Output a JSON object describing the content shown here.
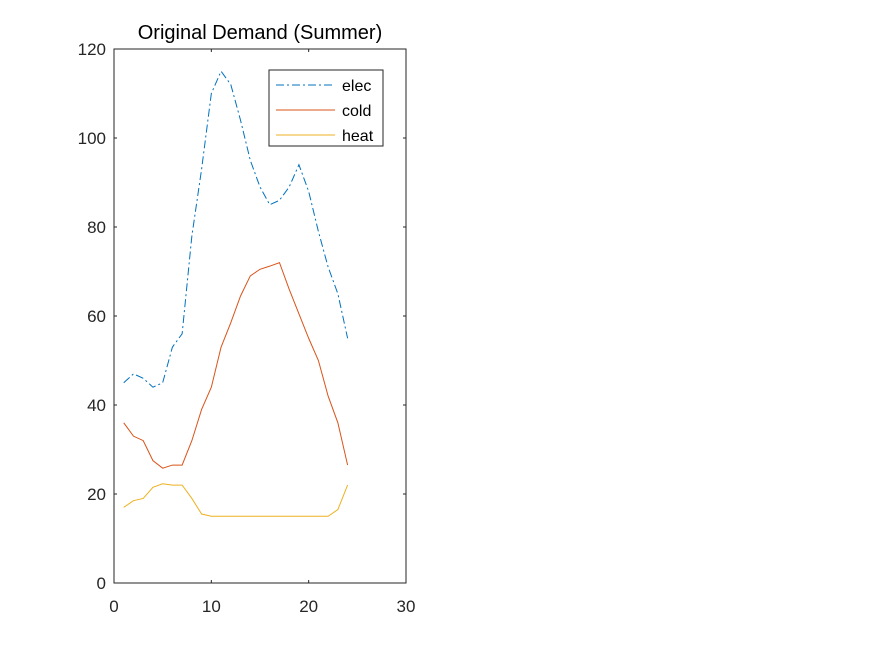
{
  "chart_data": {
    "type": "line",
    "title": "Original Demand (Summer)",
    "xlabel": "",
    "ylabel": "",
    "xlim": [
      0,
      30
    ],
    "ylim": [
      0,
      120
    ],
    "xticks": [
      0,
      10,
      20,
      30
    ],
    "yticks": [
      0,
      20,
      40,
      60,
      80,
      100,
      120
    ],
    "grid": false,
    "legend_position": "top-right",
    "x": [
      1,
      2,
      3,
      4,
      5,
      6,
      7,
      8,
      9,
      10,
      11,
      12,
      13,
      14,
      15,
      16,
      17,
      18,
      19,
      20,
      21,
      22,
      23,
      24
    ],
    "series": [
      {
        "name": "elec",
        "color": "#0072BD",
        "line_style": "dash-dot",
        "values": [
          45,
          47,
          46,
          44,
          45,
          53,
          56,
          78,
          93,
          110,
          115,
          112,
          104,
          95,
          89,
          85,
          86,
          89,
          94,
          88,
          79,
          71,
          65,
          55
        ]
      },
      {
        "name": "cold",
        "color": "#D95319",
        "line_style": "solid",
        "values": [
          36,
          33,
          32,
          27.5,
          25.8,
          26.5,
          26.5,
          32,
          39,
          44,
          53,
          58.5,
          64.5,
          69,
          70.5,
          71.2,
          72,
          66,
          60.5,
          55,
          50,
          42,
          36,
          26.5
        ]
      },
      {
        "name": "heat",
        "color": "#EDB120",
        "line_style": "solid",
        "values": [
          17,
          18.5,
          19,
          21.5,
          22.3,
          22,
          22,
          19,
          15.5,
          15,
          15,
          15,
          15,
          15,
          15,
          15,
          15,
          15,
          15,
          15,
          15,
          15,
          16.5,
          22
        ]
      }
    ]
  }
}
